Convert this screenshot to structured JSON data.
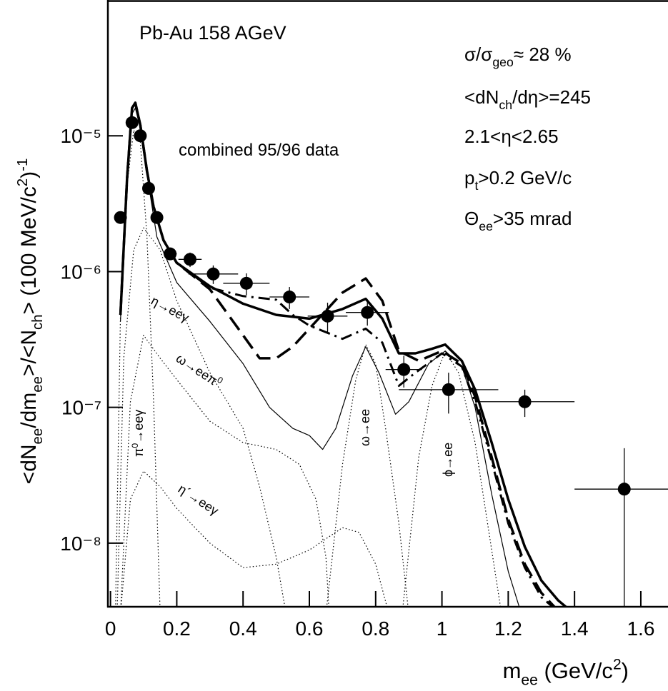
{
  "chart_data": {
    "type": "line",
    "log_y": true,
    "xlim": [
      -0.01,
      1.682
    ],
    "ylim": [
      3.4e-09,
      0.0001
    ],
    "xticks": [
      0,
      0.2,
      0.4,
      0.6,
      0.8,
      1,
      1.2,
      1.4,
      1.6
    ],
    "yticks": [
      {
        "value": 1e-08,
        "label": "10⁻⁸"
      },
      {
        "value": 1e-07,
        "label": "10⁻⁷"
      },
      {
        "value": 1e-06,
        "label": "10⁻⁶"
      },
      {
        "value": 1e-05,
        "label": "10⁻⁵"
      }
    ],
    "xlabel": [
      {
        "text": "m"
      },
      {
        "text": "ee",
        "shift": "sub"
      },
      {
        "text": " (GeV/c"
      },
      {
        "text": "2",
        "shift": "sup"
      },
      {
        "text": ")"
      }
    ],
    "ylabel": [
      {
        "text": "<dN"
      },
      {
        "text": "ee",
        "shift": "sub"
      },
      {
        "text": "/dm"
      },
      {
        "text": "ee",
        "shift": "sub"
      },
      {
        "text": ">/<N"
      },
      {
        "text": "ch",
        "shift": "sub"
      },
      {
        "text": "> (100 MeV/c"
      },
      {
        "text": "2",
        "shift": "sup"
      },
      {
        "text": ")"
      },
      {
        "text": "-1",
        "shift": "sup"
      }
    ],
    "annotations": [
      [
        {
          "text": "Pb-Au 158 AGeV"
        }
      ],
      [
        {
          "text": "combined 95/96 data"
        }
      ],
      [
        {
          "text": "σ/σ"
        },
        {
          "text": "geo",
          "shift": "sub"
        },
        {
          "text": "≈ 28 %"
        }
      ],
      [
        {
          "text": "<dN"
        },
        {
          "text": "ch",
          "shift": "sub"
        },
        {
          "text": "/dη>=245"
        }
      ],
      [
        {
          "text": "2.1<η<2.65"
        }
      ],
      [
        {
          "text": "p"
        },
        {
          "text": "t",
          "shift": "sub"
        },
        {
          "text": ">0.2 GeV/c"
        }
      ],
      [
        {
          "text": "Θ"
        },
        {
          "text": "ee",
          "shift": "sub"
        },
        {
          "text": ">35 mrad"
        }
      ],
      [
        {
          "text": "η→eeγ"
        }
      ],
      [
        {
          "text": "ω→eeπ"
        },
        {
          "text": "0",
          "shift": "sup"
        }
      ],
      [
        {
          "text": "π"
        },
        {
          "text": "0",
          "shift": "sup"
        },
        {
          "text": "→eeγ"
        }
      ],
      [
        {
          "text": "ω→ee"
        }
      ],
      [
        {
          "text": "ϕ→ee"
        }
      ],
      [
        {
          "text": "η´→eeγ"
        }
      ]
    ],
    "points": {
      "color": "#000000",
      "x": [
        0.03,
        0.065,
        0.09,
        0.115,
        0.14,
        0.18,
        0.24,
        0.31,
        0.41,
        0.54,
        0.655,
        0.775,
        0.885,
        1.02,
        1.25,
        1.55
      ],
      "values": [
        2.5e-06,
        1.25e-05,
        1e-05,
        4.1e-06,
        2.5e-06,
        1.35e-06,
        1.23e-06,
        9.6e-07,
        8.2e-07,
        6.5e-07,
        4.7e-07,
        5e-07,
        1.9e-07,
        1.35e-07,
        1.1e-07,
        2.5e-08
      ],
      "xerr": [
        0,
        0,
        0,
        0,
        0,
        0.02,
        0.035,
        0.075,
        0.07,
        0.06,
        0.06,
        0.065,
        0.055,
        0.15,
        0.15,
        0.15
      ],
      "yerr": [
        1e-07,
        5e-07,
        4e-07,
        2e-07,
        1.5e-07,
        1.2e-07,
        1.5e-07,
        1.5e-07,
        1.5e-07,
        1.2e-07,
        1.2e-07,
        1e-07,
        5e-08,
        4.5e-08,
        2.5e-08,
        2.5e-08
      ]
    },
    "series": [
      {
        "style": "solid",
        "width": 3.5,
        "color": "#000000",
        "x": [
          0.03,
          0.05,
          0.065,
          0.075,
          0.09,
          0.11,
          0.13,
          0.16,
          0.2,
          0.3,
          0.4,
          0.5,
          0.6,
          0.7,
          0.77,
          0.82,
          0.87,
          0.92,
          0.97,
          1.01,
          1.06,
          1.1,
          1.15,
          1.2,
          1.25,
          1.3,
          1.35,
          1.4
        ],
        "values": [
          4.8e-07,
          4.8e-06,
          1.6e-05,
          1.75e-05,
          1.2e-05,
          5.5e-06,
          3e-06,
          1.7e-06,
          1.16e-06,
          7.8e-07,
          5.8e-07,
          4.8e-07,
          4.5e-07,
          5.3e-07,
          6.3e-07,
          4.5e-07,
          2.5e-07,
          2.5e-07,
          2.7e-07,
          2.9e-07,
          2.2e-07,
          1.35e-07,
          5.5e-08,
          2.1e-08,
          9.4e-09,
          5.3e-09,
          3.8e-09,
          3e-09
        ]
      },
      {
        "style": "dashed",
        "width": 3.5,
        "color": "#000000",
        "x": [
          0.03,
          0.05,
          0.065,
          0.075,
          0.09,
          0.11,
          0.13,
          0.16,
          0.2,
          0.3,
          0.4,
          0.45,
          0.5,
          0.55,
          0.6,
          0.7,
          0.77,
          0.82,
          0.87,
          0.93,
          1.0,
          1.06,
          1.1,
          1.15,
          1.2,
          1.25,
          1.3,
          1.36
        ],
        "values": [
          4.8e-07,
          4.8e-06,
          1.6e-05,
          1.75e-05,
          1.2e-05,
          5.5e-06,
          3e-06,
          1.7e-06,
          1.16e-06,
          7.4e-07,
          3.4e-07,
          2.3e-07,
          2.3e-07,
          2.8e-07,
          3.8e-07,
          7e-07,
          8.9e-07,
          6.1e-07,
          2.6e-07,
          2.2e-07,
          2.6e-07,
          2.1e-07,
          1.2e-07,
          4.3e-08,
          1.5e-08,
          7e-09,
          4.3e-09,
          3e-09
        ]
      },
      {
        "style": "dashdot",
        "width": 3,
        "color": "#000000",
        "x": [
          0.03,
          0.05,
          0.065,
          0.075,
          0.09,
          0.11,
          0.13,
          0.16,
          0.2,
          0.3,
          0.4,
          0.5,
          0.55,
          0.6,
          0.7,
          0.77,
          0.82,
          0.87,
          0.92,
          1.0,
          1.06,
          1.1,
          1.15,
          1.2,
          1.25,
          1.3,
          1.36
        ],
        "values": [
          4.8e-07,
          4.8e-06,
          1.6e-05,
          1.75e-05,
          1.2e-05,
          5.5e-06,
          3e-06,
          1.7e-06,
          1.16e-06,
          7.6e-07,
          6.6e-07,
          6.2e-07,
          4.8e-07,
          4e-07,
          3.2e-07,
          3.8e-07,
          3e-07,
          1.44e-07,
          1.8e-07,
          2.5e-07,
          2e-07,
          1.1e-07,
          4e-08,
          1.4e-08,
          6.6e-09,
          4e-09,
          3e-09
        ]
      },
      {
        "style": "solid",
        "width": 1.2,
        "color": "#000000",
        "x": [
          0.03,
          0.05,
          0.065,
          0.075,
          0.09,
          0.11,
          0.14,
          0.2,
          0.3,
          0.4,
          0.48,
          0.55,
          0.6,
          0.64,
          0.68,
          0.73,
          0.77,
          0.81,
          0.86,
          0.9,
          0.96,
          1.01,
          1.06,
          1.1,
          1.15,
          1.2,
          1.24
        ],
        "values": [
          4.3e-07,
          4.8e-06,
          1.45e-05,
          1.6e-05,
          1.15e-05,
          5.2e-06,
          1.8e-06,
          8.3e-07,
          4.3e-07,
          2.1e-07,
          1e-07,
          7e-08,
          6.2e-08,
          4.9e-08,
          7e-08,
          1.7e-07,
          2.8e-07,
          1.8e-07,
          8.9e-08,
          1.1e-07,
          2.1e-07,
          2.6e-07,
          2e-07,
          1e-07,
          2.3e-08,
          6.2e-09,
          3e-09
        ]
      },
      {
        "style": "dotted",
        "width": 1.2,
        "color": "#000000",
        "x": [
          0.015,
          0.03,
          0.05,
          0.07,
          0.09,
          0.11,
          0.13,
          0.15
        ],
        "values": [
          3e-09,
          4.8e-07,
          4.3e-06,
          1.1e-05,
          9e-06,
          1.8e-06,
          1.1e-07,
          3e-09
        ]
      },
      {
        "style": "dotted",
        "width": 1.2,
        "color": "#000000",
        "x": [
          0.02,
          0.04,
          0.07,
          0.1,
          0.15,
          0.2,
          0.3,
          0.4,
          0.45,
          0.5,
          0.53
        ],
        "values": [
          3e-09,
          2.3e-07,
          1.44e-06,
          2.1e-06,
          1.44e-06,
          6.1e-07,
          1.8e-07,
          7e-08,
          2.6e-08,
          7.9e-09,
          3e-09
        ]
      },
      {
        "style": "dotted",
        "width": 1.2,
        "color": "#000000",
        "x": [
          0.03,
          0.06,
          0.1,
          0.15,
          0.2,
          0.3,
          0.4,
          0.5,
          0.57,
          0.62,
          0.65,
          0.66
        ],
        "values": [
          3e-09,
          1.1e-07,
          3.4e-07,
          2.3e-07,
          1.6e-07,
          7.9e-08,
          5.5e-08,
          4.9e-08,
          3.8e-08,
          2.1e-08,
          7.9e-09,
          3e-09
        ]
      },
      {
        "style": "dotted",
        "width": 1.2,
        "color": "#000000",
        "x": [
          0.03,
          0.06,
          0.1,
          0.15,
          0.2,
          0.3,
          0.4,
          0.5,
          0.6,
          0.7,
          0.75,
          0.8,
          0.84
        ],
        "values": [
          3e-09,
          2.1e-08,
          3.4e-08,
          2.6e-08,
          1.8e-08,
          1e-08,
          6.6e-09,
          7e-09,
          8.9e-09,
          1.3e-08,
          1.2e-08,
          7e-09,
          3e-09
        ]
      },
      {
        "style": "dotted",
        "width": 1.2,
        "color": "#000000",
        "x": [
          0.65,
          0.7,
          0.74,
          0.77,
          0.8,
          0.83,
          0.87,
          0.9
        ],
        "values": [
          3e-09,
          3.8e-08,
          1.6e-07,
          2.9e-07,
          2.1e-07,
          7e-08,
          1.4e-08,
          3e-09
        ]
      },
      {
        "style": "dotted",
        "width": 1.2,
        "color": "#000000",
        "x": [
          0.88,
          0.93,
          0.97,
          1.01,
          1.05,
          1.1,
          1.15,
          1.18
        ],
        "values": [
          3e-09,
          4.3e-08,
          1.44e-07,
          2.6e-07,
          1.8e-07,
          5.5e-08,
          8.9e-09,
          3e-09
        ]
      }
    ]
  }
}
